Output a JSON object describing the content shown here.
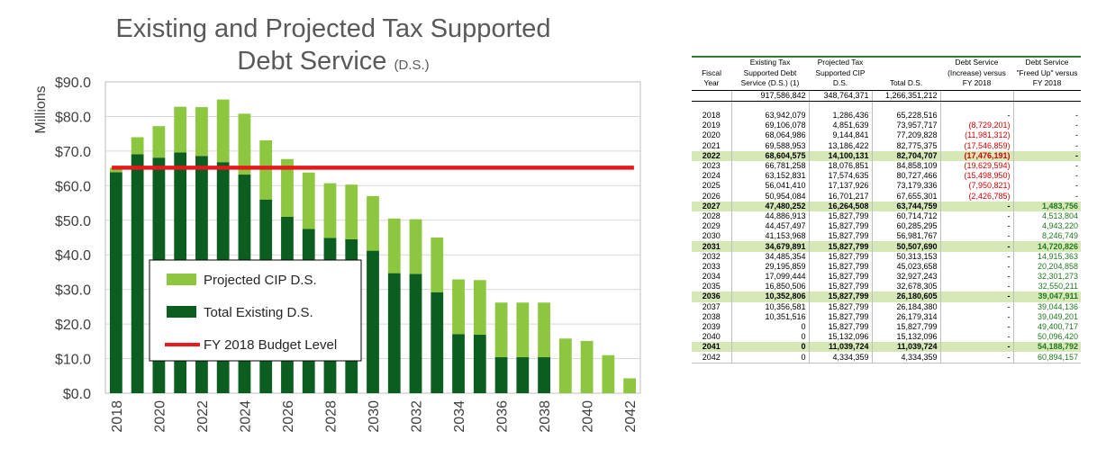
{
  "chart_data": {
    "type": "bar",
    "title": "Existing and Projected Tax Supported",
    "title_line2": "Debt Service",
    "title_suffix": "(D.S.)",
    "ylabel": "Millions",
    "xlabel": "",
    "ylim": [
      0,
      90
    ],
    "yticks": [
      "$0.0",
      "$10.0",
      "$20.0",
      "$30.0",
      "$40.0",
      "$50.0",
      "$60.0",
      "$70.0",
      "$80.0",
      "$90.0"
    ],
    "xticks": [
      "2018",
      "2020",
      "2022",
      "2024",
      "2026",
      "2028",
      "2030",
      "2032",
      "2034",
      "2036",
      "2038",
      "2040",
      "2042"
    ],
    "categories": [
      2018,
      2019,
      2020,
      2021,
      2022,
      2023,
      2024,
      2025,
      2026,
      2027,
      2028,
      2029,
      2030,
      2031,
      2032,
      2033,
      2034,
      2035,
      2036,
      2037,
      2038,
      2039,
      2040,
      2041,
      2042
    ],
    "stacked": true,
    "series": [
      {
        "name": "Total Existing D.S.",
        "color": "#0b5e1f",
        "values": [
          63.9,
          69.1,
          68.1,
          69.6,
          68.6,
          66.8,
          63.2,
          56.0,
          51.0,
          47.5,
          44.9,
          44.5,
          41.2,
          34.7,
          34.5,
          29.2,
          17.1,
          16.9,
          10.4,
          10.4,
          10.4,
          0,
          0,
          0,
          0
        ]
      },
      {
        "name": "Projected CIP D.S.",
        "color": "#8dc63f",
        "values": [
          1.3,
          4.9,
          9.1,
          13.2,
          14.1,
          18.1,
          17.6,
          17.1,
          16.7,
          16.3,
          15.8,
          15.8,
          15.8,
          15.8,
          15.8,
          15.8,
          15.8,
          15.8,
          15.8,
          15.8,
          15.8,
          15.8,
          15.1,
          11.0,
          4.3
        ]
      }
    ],
    "reference_line": {
      "name": "FY 2018 Budget Level",
      "value": 65.2,
      "color": "#e8191c"
    },
    "legend": {
      "position": "bottom-left",
      "items": [
        {
          "label": "Projected CIP D.S.",
          "color": "#8dc63f",
          "kind": "box"
        },
        {
          "label": "Total Existing D.S.",
          "color": "#0b5e1f",
          "kind": "box"
        },
        {
          "label": "FY 2018 Budget Level",
          "color": "#e8191c",
          "kind": "line"
        }
      ]
    },
    "grid": true
  },
  "table": {
    "headers": [
      "Fiscal Year",
      "Existing Tax Supported Debt Service (D.S.) (1)",
      "Projected Tax Supported CIP D.S.",
      "Total D.S.",
      "Debt Service (Increase) versus FY 2018",
      "Debt Service \"Freed Up\" versus FY 2018"
    ],
    "totals": [
      "",
      "917,586,842",
      "348,764,371",
      "1,266,351,212",
      "",
      ""
    ],
    "highlight_years": [
      "2022",
      "2027",
      "2031",
      "2036",
      "2041"
    ],
    "rows": [
      [
        "2018",
        "63,942,079",
        "1,286,436",
        "65,228,516",
        "-",
        "-"
      ],
      [
        "2019",
        "69,106,078",
        "4,851,639",
        "73,957,717",
        "(8,729,201)",
        "-"
      ],
      [
        "2020",
        "68,064,986",
        "9,144,841",
        "77,209,828",
        "(11,981,312)",
        "-"
      ],
      [
        "2021",
        "69,588,953",
        "13,186,422",
        "82,775,375",
        "(17,546,859)",
        "-"
      ],
      [
        "2022",
        "68,604,575",
        "14,100,131",
        "82,704,707",
        "(17,476,191)",
        "-"
      ],
      [
        "2023",
        "66,781,258",
        "18,076,851",
        "84,858,109",
        "(19,629,594)",
        "-"
      ],
      [
        "2024",
        "63,152,831",
        "17,574,635",
        "80,727,466",
        "(15,498,950)",
        "-"
      ],
      [
        "2025",
        "56,041,410",
        "17,137,926",
        "73,179,336",
        "(7,950,821)",
        "-"
      ],
      [
        "2026",
        "50,954,084",
        "16,701,217",
        "67,655,301",
        "(2,426,785)",
        "-"
      ],
      [
        "2027",
        "47,480,252",
        "16,264,508",
        "63,744,759",
        "-",
        "1,483,756"
      ],
      [
        "2028",
        "44,886,913",
        "15,827,799",
        "60,714,712",
        "-",
        "4,513,804"
      ],
      [
        "2029",
        "44,457,497",
        "15,827,799",
        "60,285,295",
        "-",
        "4,943,220"
      ],
      [
        "2030",
        "41,153,968",
        "15,827,799",
        "56,981,767",
        "-",
        "8,246,749"
      ],
      [
        "2031",
        "34,679,891",
        "15,827,799",
        "50,507,690",
        "-",
        "14,720,826"
      ],
      [
        "2032",
        "34,485,354",
        "15,827,799",
        "50,313,153",
        "-",
        "14,915,363"
      ],
      [
        "2033",
        "29,195,859",
        "15,827,799",
        "45,023,658",
        "-",
        "20,204,858"
      ],
      [
        "2034",
        "17,099,444",
        "15,827,799",
        "32,927,243",
        "-",
        "32,301,273"
      ],
      [
        "2035",
        "16,850,506",
        "15,827,799",
        "32,678,305",
        "-",
        "32,550,211"
      ],
      [
        "2036",
        "10,352,806",
        "15,827,799",
        "26,180,605",
        "-",
        "39,047,911"
      ],
      [
        "2037",
        "10,356,581",
        "15,827,799",
        "26,184,380",
        "-",
        "39,044,136"
      ],
      [
        "2038",
        "10,351,516",
        "15,827,799",
        "26,179,314",
        "-",
        "39,049,201"
      ],
      [
        "2039",
        "0",
        "15,827,799",
        "15,827,799",
        "-",
        "49,400,717"
      ],
      [
        "2040",
        "0",
        "15,132,096",
        "15,132,096",
        "-",
        "50,096,420"
      ],
      [
        "2041",
        "0",
        "11,039,724",
        "11,039,724",
        "-",
        "54,188,792"
      ],
      [
        "2042",
        "0",
        "4,334,359",
        "4,334,359",
        "-",
        "60,894,157"
      ]
    ]
  }
}
